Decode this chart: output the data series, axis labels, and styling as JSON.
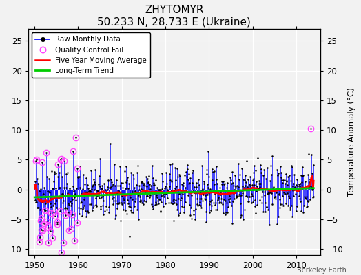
{
  "title": "ZHYTOMYR",
  "subtitle": "50.233 N, 28.733 E (Ukraine)",
  "ylabel": "Temperature Anomaly (°C)",
  "xlabel_note": "Berkeley Earth",
  "ylim": [
    -11,
    27
  ],
  "yticks": [
    -10,
    -5,
    0,
    5,
    10,
    15,
    20,
    25
  ],
  "xlim": [
    1948.5,
    2015.5
  ],
  "xticks": [
    1950,
    1960,
    1970,
    1980,
    1990,
    2000,
    2010
  ],
  "line_color": "#0000ff",
  "marker_color": "#000000",
  "qc_color": "#ff44ff",
  "moving_avg_color": "#ff0000",
  "trend_color": "#00cc00",
  "background_color": "#f2f2f2",
  "grid_color": "#ffffff",
  "seed": 42
}
